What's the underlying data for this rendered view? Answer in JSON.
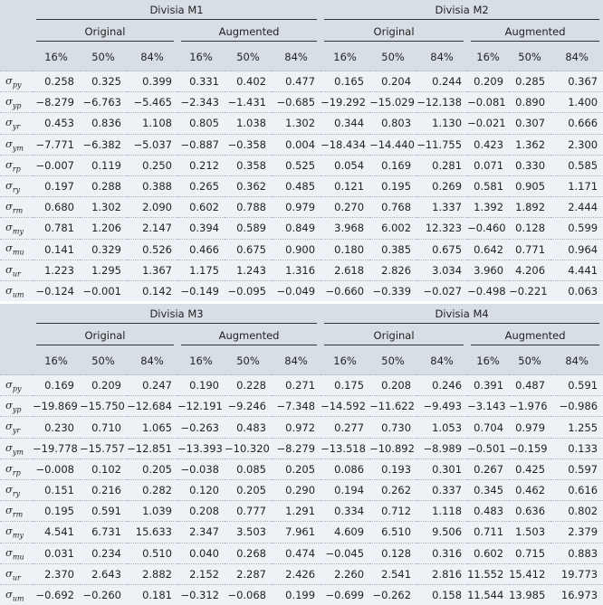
{
  "panels": [
    {
      "groups": [
        "Divisia M1",
        "Divisia M2"
      ],
      "subgroups": [
        "Original",
        "Augmented",
        "Original",
        "Augmented"
      ],
      "percentiles": [
        "16%",
        "50%",
        "84%",
        "16%",
        "50%",
        "84%",
        "16%",
        "50%",
        "84%",
        "16%",
        "50%",
        "84%"
      ],
      "rows": [
        {
          "sym": "σ",
          "sub": "py",
          "vals": [
            "0.258",
            "0.325",
            "0.399",
            "0.331",
            "0.402",
            "0.477",
            "0.165",
            "0.204",
            "0.244",
            "0.209",
            "0.285",
            "0.367"
          ]
        },
        {
          "sym": "σ",
          "sub": "yp",
          "vals": [
            "−8.279",
            "−6.763",
            "−5.465",
            "−2.343",
            "−1.431",
            "−0.685",
            "−19.292",
            "−15.029",
            "−12.138",
            "−0.081",
            "0.890",
            "1.400"
          ]
        },
        {
          "sym": "σ",
          "sub": "yr",
          "vals": [
            "0.453",
            "0.836",
            "1.108",
            "0.805",
            "1.038",
            "1.302",
            "0.344",
            "0.803",
            "1.130",
            "−0.021",
            "0.307",
            "0.666"
          ]
        },
        {
          "sym": "σ",
          "sub": "ym",
          "vals": [
            "−7.771",
            "−6.382",
            "−5.037",
            "−0.887",
            "−0.358",
            "0.004",
            "−18.434",
            "−14.440",
            "−11.755",
            "0.423",
            "1.362",
            "2.300"
          ]
        },
        {
          "sym": "σ",
          "sub": "rp",
          "vals": [
            "−0.007",
            "0.119",
            "0.250",
            "0.212",
            "0.358",
            "0.525",
            "0.054",
            "0.169",
            "0.281",
            "0.071",
            "0.330",
            "0.585"
          ]
        },
        {
          "sym": "σ",
          "sub": "ry",
          "vals": [
            "0.197",
            "0.288",
            "0.388",
            "0.265",
            "0.362",
            "0.485",
            "0.121",
            "0.195",
            "0.269",
            "0.581",
            "0.905",
            "1.171"
          ]
        },
        {
          "sym": "σ",
          "sub": "rm",
          "vals": [
            "0.680",
            "1.302",
            "2.090",
            "0.602",
            "0.788",
            "0.979",
            "0.270",
            "0.768",
            "1.337",
            "1.392",
            "1.892",
            "2.444"
          ]
        },
        {
          "sym": "σ",
          "sub": "my",
          "vals": [
            "0.781",
            "1.206",
            "2.147",
            "0.394",
            "0.589",
            "0.849",
            "3.968",
            "6.002",
            "12.323",
            "−0.460",
            "0.128",
            "0.599"
          ]
        },
        {
          "sym": "σ",
          "sub": "mu",
          "vals": [
            "0.141",
            "0.329",
            "0.526",
            "0.466",
            "0.675",
            "0.900",
            "0.180",
            "0.385",
            "0.675",
            "0.642",
            "0.771",
            "0.964"
          ]
        },
        {
          "sym": "σ",
          "sub": "ur",
          "vals": [
            "1.223",
            "1.295",
            "1.367",
            "1.175",
            "1.243",
            "1.316",
            "2.618",
            "2.826",
            "3.034",
            "3.960",
            "4.206",
            "4.441"
          ]
        },
        {
          "sym": "σ",
          "sub": "um",
          "vals": [
            "−0.124",
            "−0.001",
            "0.142",
            "−0.149",
            "−0.095",
            "−0.049",
            "−0.660",
            "−0.339",
            "−0.027",
            "−0.498",
            "−0.221",
            "0.063"
          ]
        }
      ]
    },
    {
      "groups": [
        "Divisia M3",
        "Divisia M4"
      ],
      "subgroups": [
        "Original",
        "Augmented",
        "Original",
        "Augmented"
      ],
      "percentiles": [
        "16%",
        "50%",
        "84%",
        "16%",
        "50%",
        "84%",
        "16%",
        "50%",
        "84%",
        "16%",
        "50%",
        "84%"
      ],
      "rows": [
        {
          "sym": "σ",
          "sub": "py",
          "vals": [
            "0.169",
            "0.209",
            "0.247",
            "0.190",
            "0.228",
            "0.271",
            "0.175",
            "0.208",
            "0.246",
            "0.391",
            "0.487",
            "0.591"
          ]
        },
        {
          "sym": "σ",
          "sub": "yp",
          "vals": [
            "−19.869",
            "−15.750",
            "−12.684",
            "−12.191",
            "−9.246",
            "−7.348",
            "−14.592",
            "−11.622",
            "−9.493",
            "−3.143",
            "−1.976",
            "−0.986"
          ]
        },
        {
          "sym": "σ",
          "sub": "yr",
          "vals": [
            "0.230",
            "0.710",
            "1.065",
            "−0.263",
            "0.483",
            "0.972",
            "0.277",
            "0.730",
            "1.053",
            "0.704",
            "0.979",
            "1.255"
          ]
        },
        {
          "sym": "σ",
          "sub": "ym",
          "vals": [
            "−19.778",
            "−15.757",
            "−12.851",
            "−13.393",
            "−10.320",
            "−8.279",
            "−13.518",
            "−10.892",
            "−8.989",
            "−0.501",
            "−0.159",
            "0.133"
          ]
        },
        {
          "sym": "σ",
          "sub": "rp",
          "vals": [
            "−0.008",
            "0.102",
            "0.205",
            "−0.038",
            "0.085",
            "0.205",
            "0.086",
            "0.193",
            "0.301",
            "0.267",
            "0.425",
            "0.597"
          ]
        },
        {
          "sym": "σ",
          "sub": "ry",
          "vals": [
            "0.151",
            "0.216",
            "0.282",
            "0.120",
            "0.205",
            "0.290",
            "0.194",
            "0.262",
            "0.337",
            "0.345",
            "0.462",
            "0.616"
          ]
        },
        {
          "sym": "σ",
          "sub": "rm",
          "vals": [
            "0.195",
            "0.591",
            "1.039",
            "0.208",
            "0.777",
            "1.291",
            "0.334",
            "0.712",
            "1.118",
            "0.483",
            "0.636",
            "0.802"
          ]
        },
        {
          "sym": "σ",
          "sub": "my",
          "vals": [
            "4.541",
            "6.731",
            "15.633",
            "2.347",
            "3.503",
            "7.961",
            "4.609",
            "6.510",
            "9.506",
            "0.711",
            "1.503",
            "2.379"
          ]
        },
        {
          "sym": "σ",
          "sub": "mu",
          "vals": [
            "0.031",
            "0.234",
            "0.510",
            "0.040",
            "0.268",
            "0.474",
            "−0.045",
            "0.128",
            "0.316",
            "0.602",
            "0.715",
            "0.883"
          ]
        },
        {
          "sym": "σ",
          "sub": "ur",
          "vals": [
            "2.370",
            "2.643",
            "2.882",
            "2.152",
            "2.287",
            "2.426",
            "2.260",
            "2.541",
            "2.816",
            "11.552",
            "15.412",
            "19.773"
          ]
        },
        {
          "sym": "σ",
          "sub": "um",
          "vals": [
            "−0.692",
            "−0.260",
            "0.181",
            "−0.312",
            "−0.068",
            "0.199",
            "−0.699",
            "−0.262",
            "0.158",
            "11.544",
            "13.985",
            "16.973"
          ]
        }
      ]
    }
  ]
}
